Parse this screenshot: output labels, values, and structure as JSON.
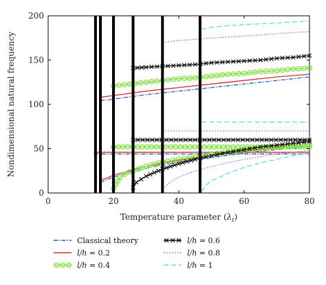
{
  "chart_data": {
    "type": "line",
    "title": "",
    "xlabel": "Temperature parameter (λ_t)",
    "ylabel": "Nondimensional natural frequency",
    "xlim": [
      0,
      80
    ],
    "ylim": [
      0,
      200
    ],
    "xticks": [
      0,
      20,
      40,
      60,
      80
    ],
    "yticks": [
      0,
      50,
      100,
      150,
      200
    ],
    "grid": false,
    "legend_position": "bottom",
    "series": [
      {
        "name": "Classical theory",
        "color": "#1f5bd6",
        "dash": "6,2,1.5,2",
        "marker": "none",
        "curves": [
          {
            "x": [
              16,
              20,
              30,
              40,
              50,
              60,
              70,
              80
            ],
            "y": [
              104,
              106,
              111,
              115,
              119,
              123,
              127,
              131
            ]
          },
          {
            "x": [
              14,
              80
            ],
            "y": [
              44,
              44
            ]
          },
          {
            "x": [
              16,
              20,
              30,
              40,
              50,
              60,
              70,
              80
            ],
            "y": [
              12,
              18,
              28,
              35,
              40,
              45,
              49,
              52
            ]
          }
        ]
      },
      {
        "name": "l/h = 0.2",
        "color": "#d62c2c",
        "dash": "",
        "marker": "none",
        "curves": [
          {
            "x": [
              16,
              20,
              30,
              40,
              50,
              60,
              70,
              80
            ],
            "y": [
              108,
              110,
              115,
              119,
              123,
              127,
              131,
              134
            ]
          },
          {
            "x": [
              14,
              80
            ],
            "y": [
              46,
              46
            ]
          },
          {
            "x": [
              16,
              20,
              30,
              40,
              50,
              60,
              70,
              80
            ],
            "y": [
              14,
              20,
              30,
              37,
              42,
              47,
              51,
              54
            ]
          }
        ]
      },
      {
        "name": "l/h = 0.4",
        "color": "#7fe53a",
        "dash": "",
        "marker": "circle",
        "curves": [
          {
            "x": [
              20,
              25,
              30,
              35,
              40,
              45,
              50,
              55,
              60,
              65,
              70,
              75,
              80
            ],
            "y": [
              121,
              123,
              125,
              127,
              129,
              130,
              132,
              134,
              135,
              137,
              138,
              140,
              141
            ]
          },
          {
            "x": [
              20,
              80
            ],
            "y": [
              52,
              52
            ]
          },
          {
            "x": [
              20,
              22,
              25,
              30,
              35,
              40,
              45,
              50,
              55,
              60,
              65,
              70,
              75,
              80
            ],
            "y": [
              5,
              18,
              24,
              30,
              35,
              38,
              41,
              44,
              46,
              48,
              50,
              52,
              53,
              54
            ]
          }
        ]
      },
      {
        "name": "l/h = 0.6",
        "color": "#111111",
        "dash": "",
        "marker": "x",
        "curves": [
          {
            "x": [
              26,
              30,
              35,
              40,
              45,
              50,
              55,
              60,
              65,
              70,
              75,
              80
            ],
            "y": [
              141,
              142,
              143,
              144,
              145,
              147,
              148,
              149,
              150,
              152,
              153,
              155
            ]
          },
          {
            "x": [
              26,
              80
            ],
            "y": [
              60,
              60
            ]
          },
          {
            "x": [
              26,
              27,
              30,
              35,
              40,
              45,
              50,
              55,
              60,
              65,
              70,
              75,
              80
            ],
            "y": [
              6,
              12,
              19,
              27,
              33,
              38,
              42,
              46,
              49,
              52,
              54,
              56,
              58
            ]
          }
        ]
      },
      {
        "name": "l/h = 0.8",
        "color": "#b65cc9",
        "dash": "1.5,2.5",
        "marker": "none",
        "curves": [
          {
            "x": [
              35,
              40,
              50,
              60,
              70,
              80
            ],
            "y": [
              170,
              172,
              175,
              177,
              180,
              182
            ]
          },
          {
            "x": [
              35,
              80
            ],
            "y": [
              70,
              70
            ]
          },
          {
            "x": [
              35,
              38,
              40,
              45,
              50,
              55,
              60,
              65,
              70,
              75,
              80
            ],
            "y": [
              5,
              14,
              18,
              25,
              30,
              34,
              38,
              41,
              44,
              46,
              48
            ]
          }
        ]
      },
      {
        "name": "l/h = 1",
        "color": "#56e3e3",
        "dash": "7,4",
        "marker": "none",
        "curves": [
          {
            "x": [
              47,
              50,
              55,
              60,
              65,
              70,
              75,
              80
            ],
            "y": [
              185,
              187,
              189,
              190,
              191,
              192,
              193,
              194
            ]
          },
          {
            "x": [
              47,
              80
            ],
            "y": [
              80,
              80
            ]
          },
          {
            "x": [
              47,
              48,
              50,
              55,
              60,
              65,
              70,
              75,
              80
            ],
            "y": [
              2,
              8,
              14,
              22,
              29,
              34,
              38,
              42,
              45
            ]
          }
        ]
      }
    ],
    "critical_lines": [
      {
        "x": 14.5,
        "color": "#000000"
      },
      {
        "x": 16,
        "color": "#000000"
      },
      {
        "x": 20,
        "color": "#000000"
      },
      {
        "x": 26,
        "color": "#000000"
      },
      {
        "x": 35,
        "color": "#000000"
      },
      {
        "x": 46.5,
        "color": "#000000"
      }
    ]
  }
}
